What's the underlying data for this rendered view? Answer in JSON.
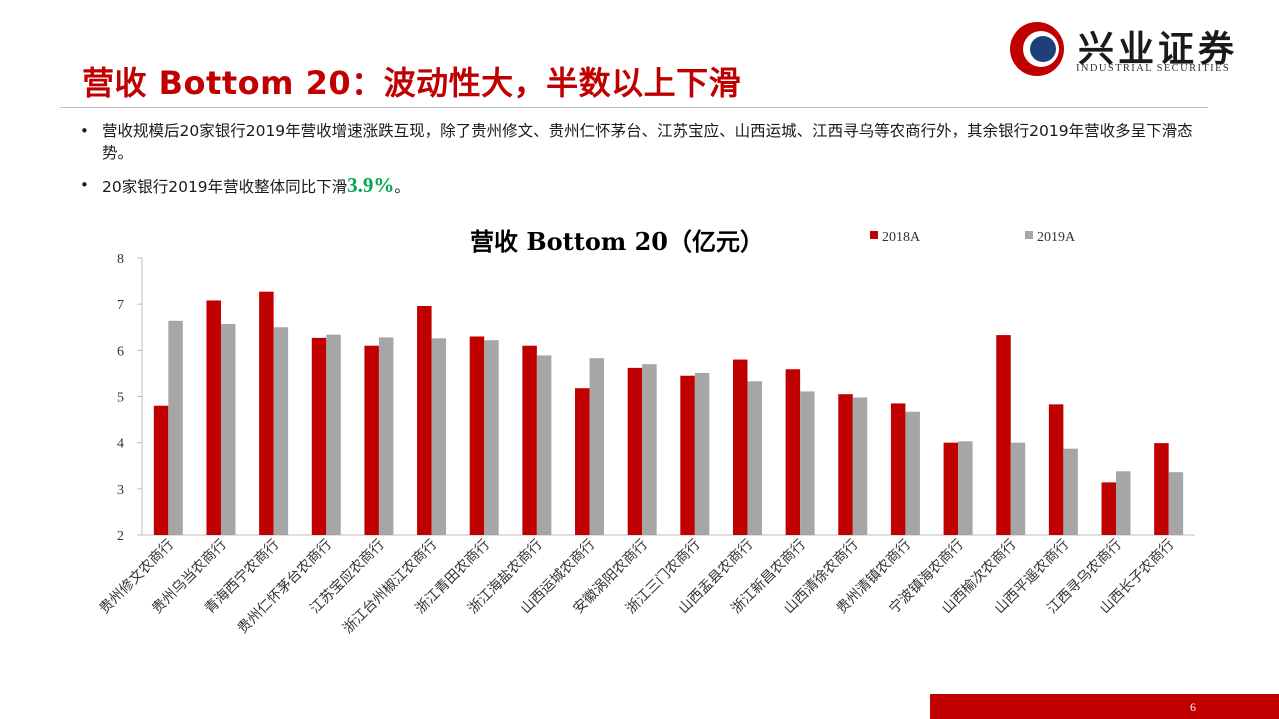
{
  "header": {
    "title": "营收 Bottom 20：波动性大，半数以上下滑",
    "logo_cn": "兴业证券",
    "logo_en": "INDUSTRIAL SECURITIES",
    "brand_red": "#c00000",
    "brand_blue": "#1d3f7a"
  },
  "bullets": {
    "item1": "营收规模后20家银行2019年营收增速涨跌互现，除了贵州修文、贵州仁怀茅台、江苏宝应、山西运城、江西寻乌等农商行外，其余银行2019年营收多呈下滑态势。",
    "item2_prefix": "20家银行2019年营收整体同比下滑",
    "item2_value": "3.9%",
    "item2_suffix": "。",
    "highlight_color": "#00a651"
  },
  "footer": {
    "page_number": "6"
  },
  "chart_data": {
    "type": "bar",
    "title": "营收 Bottom 20（亿元）",
    "xlabel": "",
    "ylabel": "",
    "ylim": [
      2,
      8
    ],
    "yticks": [
      2,
      3,
      4,
      5,
      6,
      7,
      8
    ],
    "grid": false,
    "legend_position": "top-right",
    "categories": [
      "贵州修文农商行",
      "贵州乌当农商行",
      "青海西宁农商行",
      "贵州仁怀茅台农商行",
      "江苏宝应农商行",
      "浙江台州椒江农商行",
      "浙江青田农商行",
      "浙江海盐农商行",
      "山西运城农商行",
      "安徽涡阳农商行",
      "浙江三门农商行",
      "山西盂县农商行",
      "浙江新昌农商行",
      "山西清徐农商行",
      "贵州清镇农商行",
      "宁波镇海农商行",
      "山西榆次农商行",
      "山西平遥农商行",
      "江西寻乌农商行",
      "山西长子农商行"
    ],
    "series": [
      {
        "name": "2018A",
        "color": "#c00000",
        "values": [
          4.8,
          7.08,
          7.27,
          6.27,
          6.1,
          6.96,
          6.3,
          6.1,
          5.18,
          5.62,
          5.45,
          5.8,
          5.59,
          5.05,
          4.85,
          4.0,
          6.33,
          4.83,
          3.14,
          3.99
        ]
      },
      {
        "name": "2019A",
        "color": "#a6a6a6",
        "values": [
          6.64,
          6.57,
          6.5,
          6.34,
          6.28,
          6.26,
          6.22,
          5.89,
          5.83,
          5.7,
          5.51,
          5.33,
          5.11,
          4.98,
          4.67,
          4.03,
          4.0,
          3.87,
          3.38,
          3.36
        ]
      }
    ]
  }
}
